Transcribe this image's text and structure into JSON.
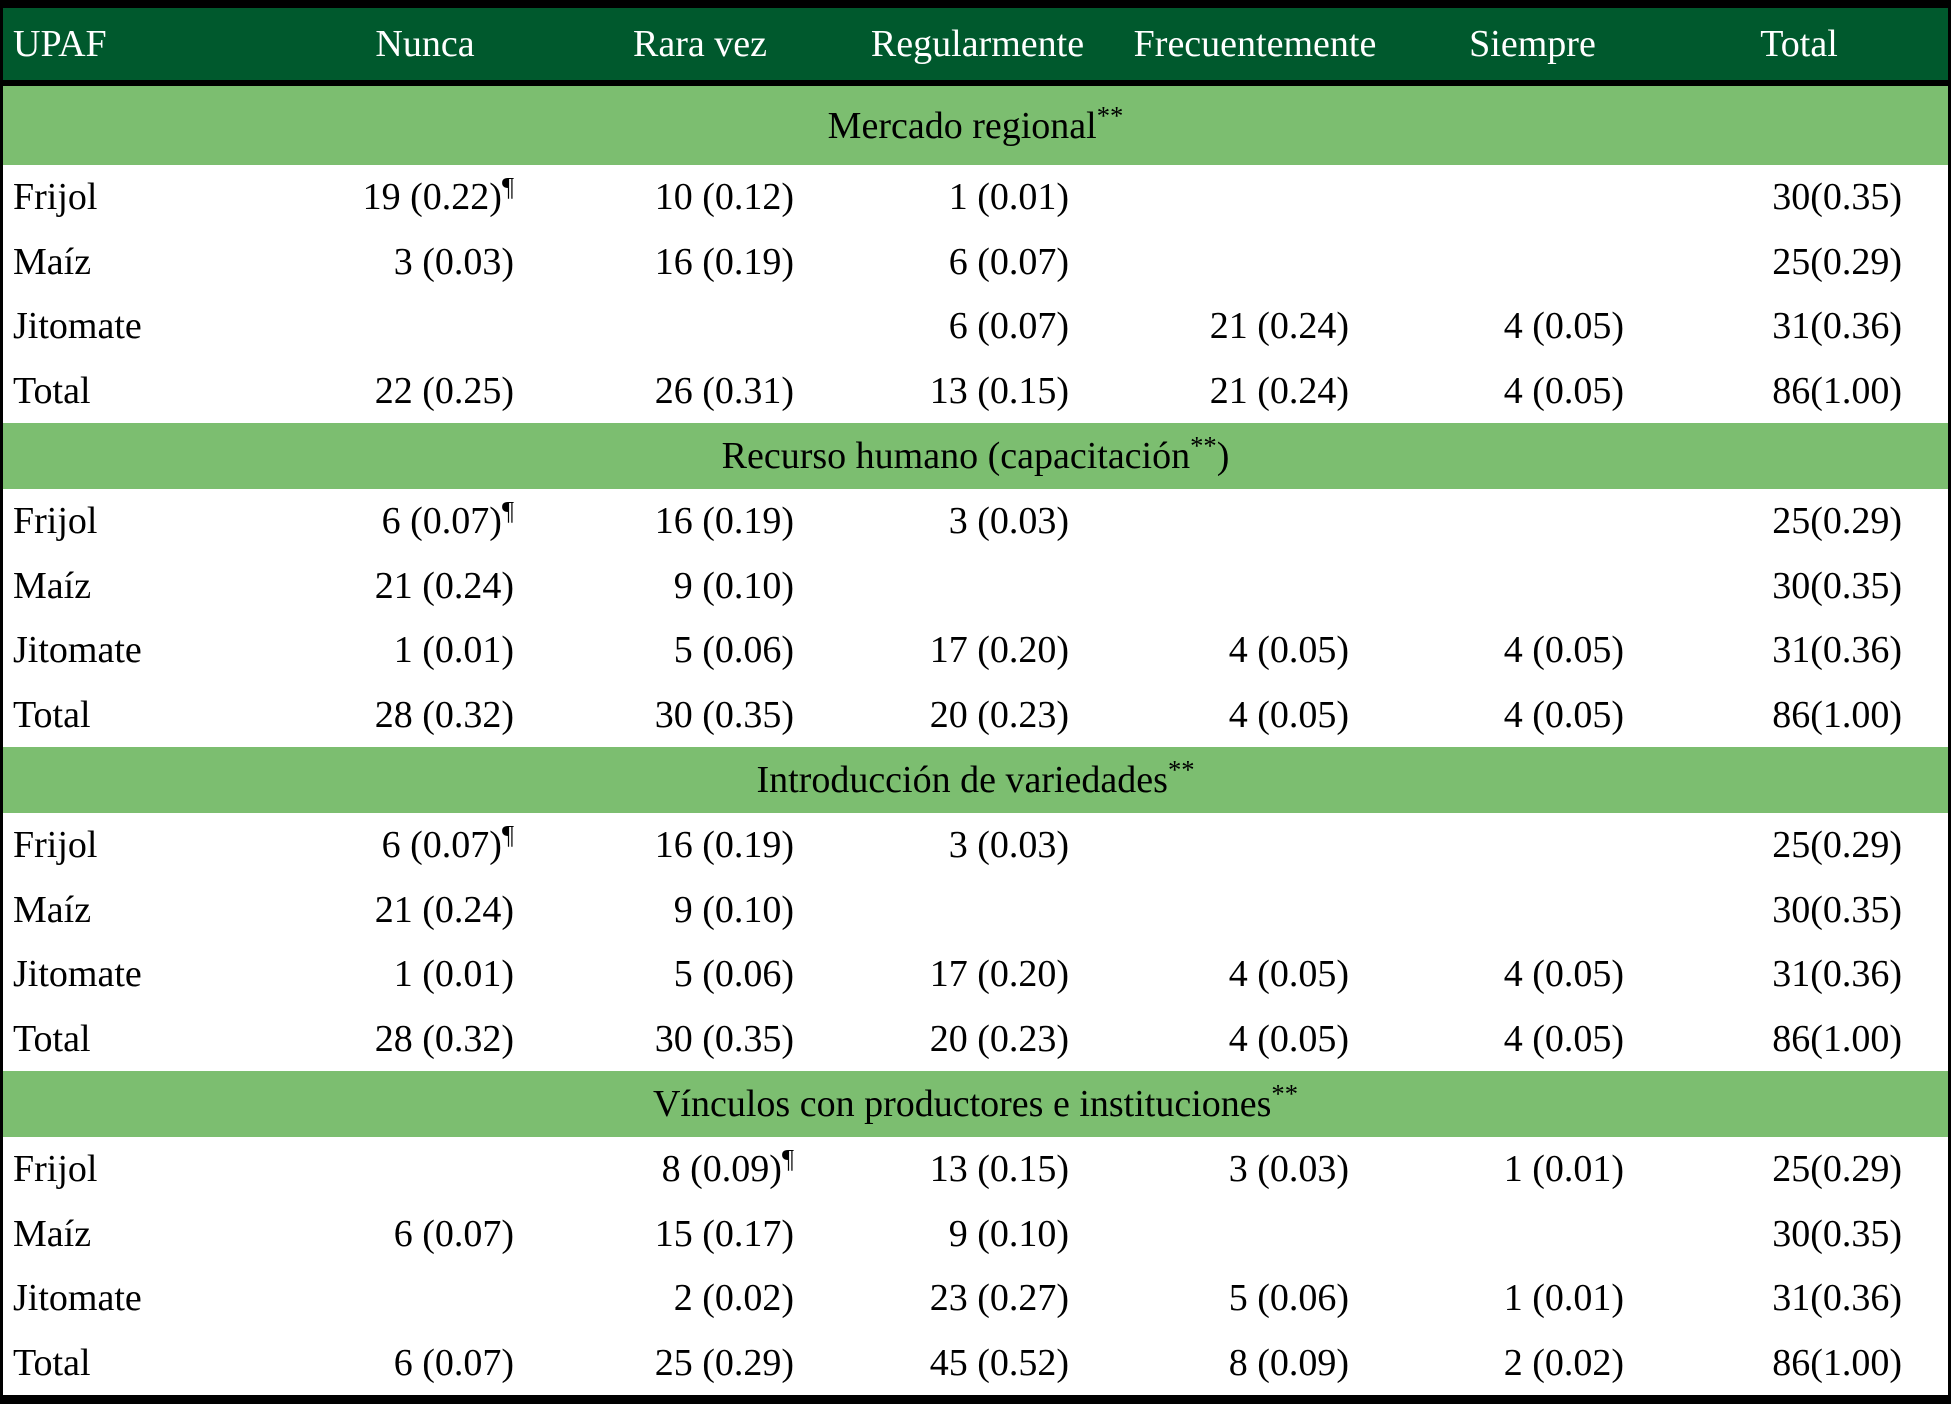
{
  "colors": {
    "header_bg": "#00592D",
    "header_text": "#FFFFFF",
    "band_bg": "#7CBE70",
    "body_text": "#000000",
    "border": "#000000"
  },
  "table": {
    "columns": [
      "UPAF",
      "Nunca",
      "Rara vez",
      "Regularmente",
      "Frecuentemente",
      "Siempre",
      "Total"
    ],
    "footnote_marker": "¶",
    "significance_marker": "**",
    "sections": [
      {
        "title": "Mercado regional",
        "title_sup": "**",
        "title_suffix": "",
        "rows": [
          {
            "label": "Frijol",
            "cells": [
              "19 (0.22)",
              "10 (0.12)",
              "1 (0.01)",
              "",
              "",
              "30(0.35)"
            ],
            "pilcrow_col": 0
          },
          {
            "label": "Maíz",
            "cells": [
              "3 (0.03)",
              "16 (0.19)",
              "6 (0.07)",
              "",
              "",
              "25(0.29)"
            ],
            "pilcrow_col": null
          },
          {
            "label": "Jitomate",
            "cells": [
              "",
              "",
              "6 (0.07)",
              "21 (0.24)",
              "4 (0.05)",
              "31(0.36)"
            ],
            "pilcrow_col": null
          },
          {
            "label": "Total",
            "cells": [
              "22 (0.25)",
              "26 (0.31)",
              "13 (0.15)",
              "21 (0.24)",
              "4 (0.05)",
              "86(1.00)"
            ],
            "pilcrow_col": null
          }
        ]
      },
      {
        "title": "Recurso humano (capacitación",
        "title_sup": "**",
        "title_suffix": ")",
        "rows": [
          {
            "label": "Frijol",
            "cells": [
              "6 (0.07)",
              "16 (0.19)",
              "3 (0.03)",
              "",
              "",
              "25(0.29)"
            ],
            "pilcrow_col": 0
          },
          {
            "label": "Maíz",
            "cells": [
              "21 (0.24)",
              "9 (0.10)",
              "",
              "",
              "",
              "30(0.35)"
            ],
            "pilcrow_col": null
          },
          {
            "label": "Jitomate",
            "cells": [
              "1 (0.01)",
              "5 (0.06)",
              "17 (0.20)",
              "4 (0.05)",
              "4 (0.05)",
              "31(0.36)"
            ],
            "pilcrow_col": null
          },
          {
            "label": "Total",
            "cells": [
              "28 (0.32)",
              "30 (0.35)",
              "20 (0.23)",
              "4 (0.05)",
              "4 (0.05)",
              "86(1.00)"
            ],
            "pilcrow_col": null
          }
        ]
      },
      {
        "title": "Introducción de variedades",
        "title_sup": "**",
        "title_suffix": "",
        "rows": [
          {
            "label": "Frijol",
            "cells": [
              "6 (0.07)",
              "16 (0.19)",
              "3 (0.03)",
              "",
              "",
              "25(0.29)"
            ],
            "pilcrow_col": 0
          },
          {
            "label": "Maíz",
            "cells": [
              "21 (0.24)",
              "9 (0.10)",
              "",
              "",
              "",
              "30(0.35)"
            ],
            "pilcrow_col": null
          },
          {
            "label": "Jitomate",
            "cells": [
              "1 (0.01)",
              "5 (0.06)",
              "17 (0.20)",
              "4 (0.05)",
              "4 (0.05)",
              "31(0.36)"
            ],
            "pilcrow_col": null
          },
          {
            "label": "Total",
            "cells": [
              "28 (0.32)",
              "30 (0.35)",
              "20 (0.23)",
              "4 (0.05)",
              "4 (0.05)",
              "86(1.00)"
            ],
            "pilcrow_col": null
          }
        ]
      },
      {
        "title": "Vínculos con productores e instituciones",
        "title_sup": "**",
        "title_suffix": "",
        "rows": [
          {
            "label": "Frijol",
            "cells": [
              "",
              "8 (0.09)",
              "13 (0.15)",
              "3 (0.03)",
              "1 (0.01)",
              "25(0.29)"
            ],
            "pilcrow_col": 1
          },
          {
            "label": "Maíz",
            "cells": [
              "6 (0.07)",
              "15 (0.17)",
              "9 (0.10)",
              "",
              "",
              "30(0.35)"
            ],
            "pilcrow_col": null
          },
          {
            "label": "Jitomate",
            "cells": [
              "",
              "2 (0.02)",
              "23 (0.27)",
              "5 (0.06)",
              "1 (0.01)",
              "31(0.36)"
            ],
            "pilcrow_col": null
          },
          {
            "label": "Total",
            "cells": [
              "6 (0.07)",
              "25 (0.29)",
              "45 (0.52)",
              "8 (0.09)",
              "2 (0.02)",
              "86(1.00)"
            ],
            "pilcrow_col": null
          }
        ]
      }
    ]
  }
}
